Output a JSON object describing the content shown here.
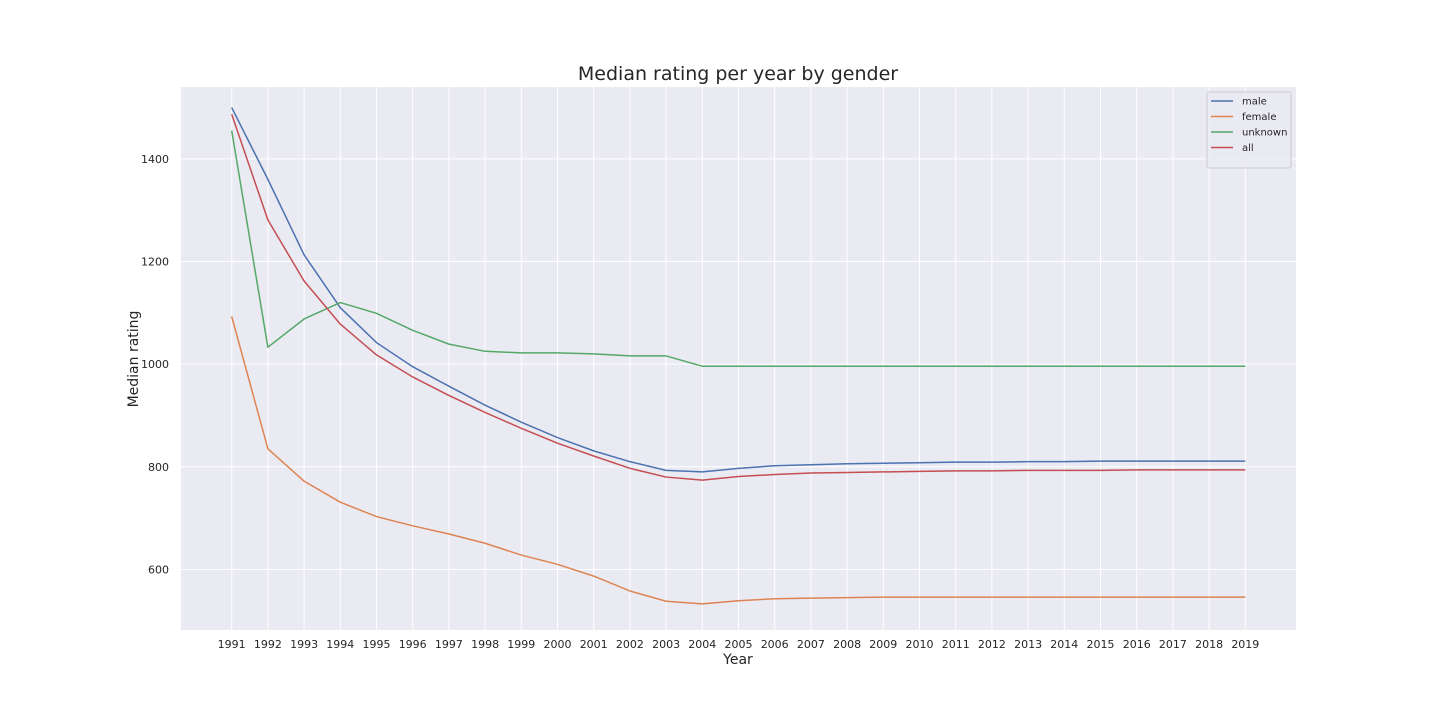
{
  "chart_data": {
    "type": "line",
    "title": "Median rating per year by gender",
    "xlabel": "Year",
    "ylabel": "Median rating",
    "x": [
      1991,
      1992,
      1993,
      1994,
      1995,
      1996,
      1997,
      1998,
      1999,
      2000,
      2001,
      2002,
      2003,
      2004,
      2005,
      2006,
      2007,
      2008,
      2009,
      2010,
      2011,
      2012,
      2013,
      2014,
      2015,
      2016,
      2017,
      2018,
      2019
    ],
    "x_tick_labels": [
      "1991",
      "1992",
      "1993",
      "1994",
      "1995",
      "1996",
      "1997",
      "1998",
      "1999",
      "2000",
      "2001",
      "2002",
      "2003",
      "2004",
      "2005",
      "2006",
      "2007",
      "2008",
      "2009",
      "2010",
      "2011",
      "2012",
      "2013",
      "2014",
      "2015",
      "2016",
      "2017",
      "2018",
      "2019"
    ],
    "y_ticks": [
      600,
      800,
      1000,
      1200,
      1400
    ],
    "y_tick_labels": [
      "600",
      "800",
      "1000",
      "1200",
      "1400"
    ],
    "xlim": [
      1989.6,
      2020.4
    ],
    "ylim": [
      482,
      1540
    ],
    "grid": true,
    "legend_position": "top-right",
    "series": [
      {
        "name": "male",
        "color": "#4c72b0",
        "values": [
          1500,
          1360,
          1213,
          1110,
          1042,
          995,
          957,
          920,
          887,
          857,
          831,
          810,
          793,
          790,
          797,
          802,
          804,
          806,
          807,
          808,
          809,
          809,
          810,
          810,
          811,
          811,
          811,
          811,
          811
        ]
      },
      {
        "name": "female",
        "color": "#dd8452",
        "values": [
          1093,
          835,
          772,
          731,
          703,
          685,
          669,
          651,
          628,
          610,
          587,
          558,
          538,
          533,
          539,
          543,
          544,
          545,
          546,
          546,
          546,
          546,
          546,
          546,
          546,
          546,
          546,
          546,
          546
        ]
      },
      {
        "name": "unknown",
        "color": "#55a868",
        "values": [
          1455,
          1033,
          1088,
          1120,
          1099,
          1066,
          1039,
          1025,
          1022,
          1022,
          1020,
          1016,
          1016,
          996,
          996,
          996,
          996,
          996,
          996,
          996,
          996,
          996,
          996,
          996,
          996,
          996,
          996,
          996,
          996
        ]
      },
      {
        "name": "all",
        "color": "#c44e52",
        "values": [
          1487,
          1281,
          1162,
          1078,
          1018,
          975,
          939,
          906,
          875,
          846,
          821,
          797,
          780,
          774,
          781,
          785,
          788,
          789,
          790,
          791,
          792,
          792,
          793,
          793,
          793,
          794,
          794,
          794,
          794
        ]
      }
    ]
  }
}
